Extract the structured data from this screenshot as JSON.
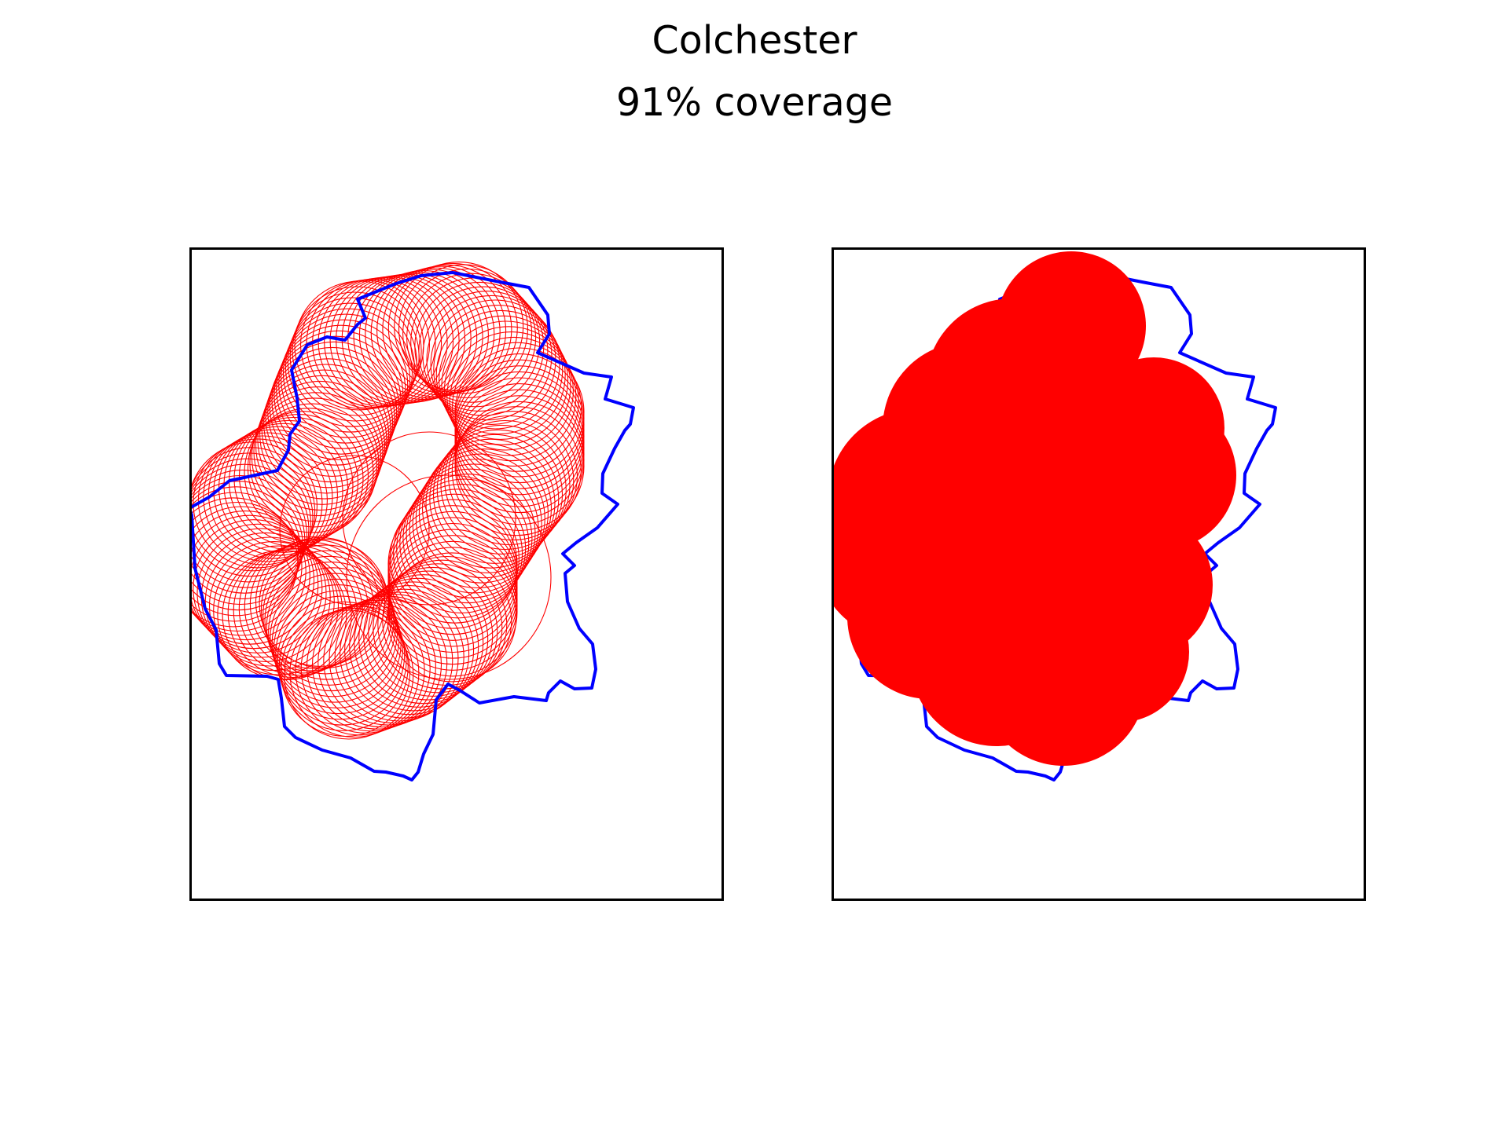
{
  "figure": {
    "title": "Colchester",
    "subtitle": "91% coverage"
  },
  "colors": {
    "boundary": "#0000ff",
    "coverage": "#ff0000",
    "frame": "#000000",
    "background": "#ffffff"
  },
  "panels": [
    {
      "id": "left",
      "style": "circle-outlines"
    },
    {
      "id": "right",
      "style": "filled-union"
    }
  ],
  "chart_data": {
    "type": "map",
    "place": "Colchester",
    "coverage_percent": 91,
    "axes_ticks": "none"
  }
}
